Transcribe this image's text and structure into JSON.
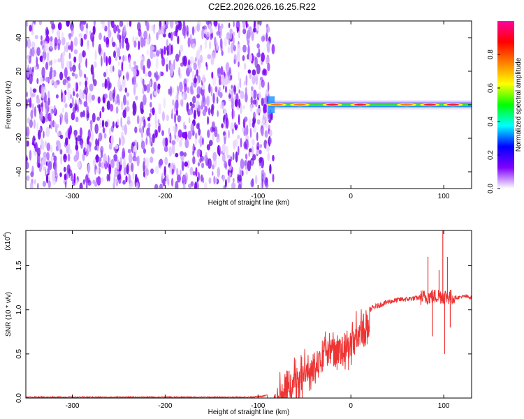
{
  "title": "C2E2.2026.026.16.25.R22",
  "chart_data": [
    {
      "type": "heatmap",
      "xlabel": "Height of straight line (km)",
      "ylabel": "Frequency (Hz)",
      "xlim": [
        -350,
        130
      ],
      "ylim": [
        -50,
        50
      ],
      "x_ticks": [
        -300,
        -200,
        -100,
        0,
        100
      ],
      "y_ticks": [
        -40,
        -20,
        0,
        20,
        40
      ],
      "noise_region_x": [
        -350,
        -88
      ],
      "signal_band": {
        "x_start": -88,
        "x_end": 130,
        "center_hz": 0,
        "halfwidth_hz": 3,
        "peaks": [
          {
            "x": -80,
            "amp": 0.65
          },
          {
            "x": -55,
            "amp": 0.7
          },
          {
            "x": -20,
            "amp": 0.85
          },
          {
            "x": 10,
            "amp": 0.9
          },
          {
            "x": 60,
            "amp": 0.8
          },
          {
            "x": 85,
            "amp": 0.95
          },
          {
            "x": 110,
            "amp": 0.9
          }
        ]
      },
      "colorbar": {
        "label": "Normalized spectral amplitude",
        "range": [
          0.0,
          1.0
        ],
        "ticks": [
          "0.0",
          "0.2",
          "0.4",
          "0.6",
          "0.8"
        ],
        "tick_values": [
          0.0,
          0.2,
          0.4,
          0.6,
          0.8
        ],
        "colors": [
          "#ffffff",
          "#8000ff",
          "#0000ff",
          "#00ffff",
          "#00ff00",
          "#ffff00",
          "#ff8000",
          "#ff0000",
          "#ff00a0"
        ]
      }
    },
    {
      "type": "line",
      "xlabel": "Height of straight line (km)",
      "ylabel": "SNR (10 * v/v)",
      "multiplier": "(x10",
      "multiplier_exp": "4",
      "multiplier_close": ")",
      "xlim": [
        -350,
        130
      ],
      "ylim": [
        0,
        1.9
      ],
      "x_ticks": [
        -300,
        -200,
        -100,
        0,
        100
      ],
      "y_ticks": [
        "0.0",
        "0.5",
        "1.0",
        "1.5"
      ],
      "y_tick_values": [
        0.0,
        0.5,
        1.0,
        1.5
      ],
      "color": "#ee3333",
      "series": [
        {
          "x": [
            -350,
            -300,
            -250,
            -200,
            -150,
            -110,
            -95,
            -85,
            -75,
            -70,
            -65,
            -60,
            -55,
            -50,
            -45,
            -40,
            -35,
            -30,
            -25,
            -20,
            -15,
            -10,
            -5,
            0,
            5,
            10,
            15,
            20,
            25,
            30,
            35,
            40,
            45,
            50,
            55,
            60,
            65,
            70,
            75,
            80,
            85,
            90,
            95,
            100,
            105,
            110,
            115,
            120,
            125,
            130
          ],
          "y": [
            0.01,
            0.01,
            0.01,
            0.01,
            0.01,
            0.01,
            0.02,
            0.05,
            0.18,
            0.35,
            0.25,
            0.4,
            0.3,
            0.5,
            0.45,
            0.55,
            0.6,
            0.62,
            0.7,
            0.72,
            0.65,
            0.75,
            0.78,
            0.82,
            0.88,
            0.92,
            0.96,
            1.0,
            1.03,
            1.05,
            1.07,
            1.09,
            1.1,
            1.11,
            1.12,
            1.12,
            1.13,
            1.13,
            1.14,
            1.14,
            1.15,
            1.15,
            1.16,
            1.15,
            1.15,
            1.14,
            1.14,
            1.15,
            1.15,
            1.14
          ],
          "spikes": [
            {
              "x": 83,
              "y": 1.6
            },
            {
              "x": 88,
              "y": 0.7
            },
            {
              "x": 95,
              "y": 1.45
            },
            {
              "x": 99,
              "y": 1.92
            },
            {
              "x": 101,
              "y": 0.5
            },
            {
              "x": 104,
              "y": 1.6
            },
            {
              "x": 107,
              "y": 0.8
            }
          ]
        }
      ]
    }
  ]
}
